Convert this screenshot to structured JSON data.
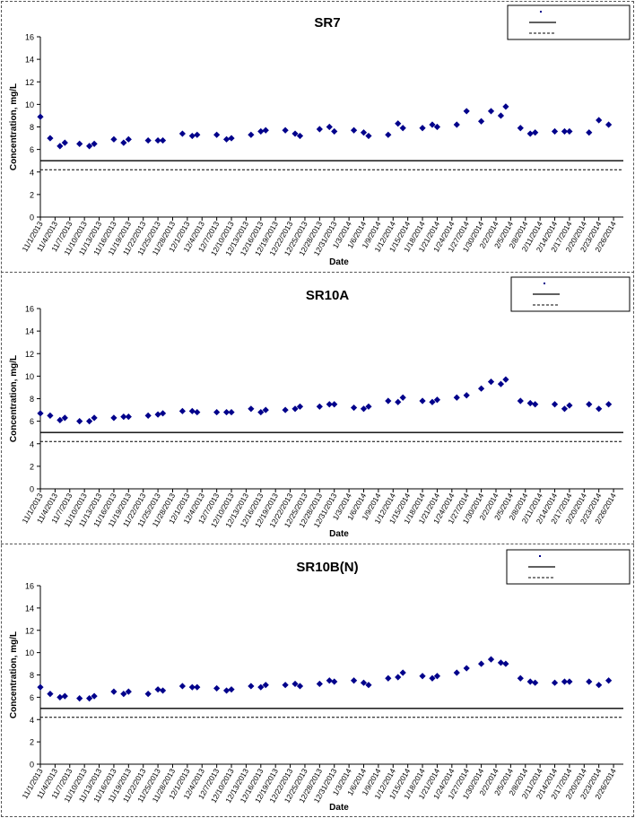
{
  "chart_data": [
    {
      "type": "scatter",
      "title": "SR7",
      "xlabel": "Date",
      "ylabel": "Concentration, mg/L",
      "ylim": [
        0,
        16
      ],
      "yticks": [
        0,
        2,
        4,
        6,
        8,
        10,
        12,
        14,
        16
      ],
      "xtick_labels": [
        "11/1/2013",
        "11/4/2013",
        "11/7/2013",
        "11/10/2013",
        "11/13/2013",
        "11/16/2013",
        "11/19/2013",
        "11/22/2013",
        "11/25/2013",
        "11/28/2013",
        "12/1/2013",
        "12/4/2013",
        "12/7/2013",
        "12/10/2013",
        "12/13/2013",
        "12/16/2013",
        "12/19/2013",
        "12/22/2013",
        "12/25/2013",
        "12/28/2013",
        "12/31/2013",
        "1/3/2014",
        "1/6/2014",
        "1/9/2014",
        "1/12/2014",
        "1/15/2014",
        "1/18/2014",
        "1/21/2014",
        "1/24/2014",
        "1/27/2014",
        "1/30/2014",
        "2/2/2014",
        "2/5/2014",
        "2/8/2014",
        "2/11/2014",
        "2/14/2014",
        "2/17/2014",
        "2/20/2014",
        "2/23/2014",
        "2/26/2014"
      ],
      "x_range": [
        "11/1/2013",
        "2/28/2014"
      ],
      "grid": false,
      "legend_position": "top-right",
      "legend": [
        "",
        "",
        ""
      ],
      "reference_lines": [
        {
          "y": 5.0,
          "style": "solid"
        },
        {
          "y": 4.2,
          "style": "dashed"
        }
      ],
      "series": [
        {
          "marker_color": "#00008b",
          "points": [
            [
              "11/1/2013",
              8.9
            ],
            [
              "11/3/2013",
              7.0
            ],
            [
              "11/5/2013",
              6.3
            ],
            [
              "11/6/2013",
              6.6
            ],
            [
              "11/9/2013",
              6.5
            ],
            [
              "11/11/2013",
              6.3
            ],
            [
              "11/12/2013",
              6.5
            ],
            [
              "11/16/2013",
              6.9
            ],
            [
              "11/18/2013",
              6.6
            ],
            [
              "11/19/2013",
              6.9
            ],
            [
              "11/23/2013",
              6.8
            ],
            [
              "11/25/2013",
              6.8
            ],
            [
              "11/26/2013",
              6.8
            ],
            [
              "11/30/2013",
              7.4
            ],
            [
              "12/2/2013",
              7.2
            ],
            [
              "12/3/2013",
              7.3
            ],
            [
              "12/7/2013",
              7.3
            ],
            [
              "12/9/2013",
              6.9
            ],
            [
              "12/10/2013",
              7.0
            ],
            [
              "12/14/2013",
              7.3
            ],
            [
              "12/16/2013",
              7.6
            ],
            [
              "12/17/2013",
              7.7
            ],
            [
              "12/21/2013",
              7.7
            ],
            [
              "12/23/2013",
              7.4
            ],
            [
              "12/24/2013",
              7.2
            ],
            [
              "12/28/2013",
              7.8
            ],
            [
              "12/30/2013",
              8.0
            ],
            [
              "12/31/2013",
              7.6
            ],
            [
              "1/4/2014",
              7.7
            ],
            [
              "1/6/2014",
              7.5
            ],
            [
              "1/7/2014",
              7.2
            ],
            [
              "1/11/2014",
              7.3
            ],
            [
              "1/13/2014",
              8.3
            ],
            [
              "1/14/2014",
              7.9
            ],
            [
              "1/18/2014",
              7.9
            ],
            [
              "1/20/2014",
              8.2
            ],
            [
              "1/21/2014",
              8.0
            ],
            [
              "1/25/2014",
              8.2
            ],
            [
              "1/27/2014",
              9.4
            ],
            [
              "1/30/2014",
              8.5
            ],
            [
              "2/1/2014",
              9.4
            ],
            [
              "2/3/2014",
              9.0
            ],
            [
              "2/4/2014",
              9.8
            ],
            [
              "2/7/2014",
              7.9
            ],
            [
              "2/9/2014",
              7.4
            ],
            [
              "2/10/2014",
              7.5
            ],
            [
              "2/14/2014",
              7.6
            ],
            [
              "2/16/2014",
              7.6
            ],
            [
              "2/17/2014",
              7.6
            ],
            [
              "2/21/2014",
              7.5
            ],
            [
              "2/23/2014",
              8.6
            ],
            [
              "2/25/2014",
              8.2
            ]
          ]
        }
      ]
    },
    {
      "type": "scatter",
      "title": "SR10A",
      "xlabel": "Date",
      "ylabel": "Concentration, mg/L",
      "ylim": [
        0,
        16
      ],
      "yticks": [
        0,
        2,
        4,
        6,
        8,
        10,
        12,
        14,
        16
      ],
      "xtick_labels": [
        "11/1/2013",
        "11/4/2013",
        "11/7/2013",
        "11/10/2013",
        "11/13/2013",
        "11/16/2013",
        "11/19/2013",
        "11/22/2013",
        "11/25/2013",
        "11/28/2013",
        "12/1/2013",
        "12/4/2013",
        "12/7/2013",
        "12/10/2013",
        "12/13/2013",
        "12/16/2013",
        "12/19/2013",
        "12/22/2013",
        "12/25/2013",
        "12/28/2013",
        "12/31/2013",
        "1/3/2014",
        "1/6/2014",
        "1/9/2014",
        "1/12/2014",
        "1/15/2014",
        "1/18/2014",
        "1/21/2014",
        "1/24/2014",
        "1/27/2014",
        "1/30/2014",
        "2/2/2014",
        "2/5/2014",
        "2/8/2014",
        "2/11/2014",
        "2/14/2014",
        "2/17/2014",
        "2/20/2014",
        "2/23/2014",
        "2/26/2014"
      ],
      "x_range": [
        "11/1/2013",
        "2/28/2014"
      ],
      "grid": false,
      "legend_position": "top-right",
      "legend": [
        "",
        "",
        ""
      ],
      "reference_lines": [
        {
          "y": 5.0,
          "style": "solid"
        },
        {
          "y": 4.2,
          "style": "dashed"
        }
      ],
      "series": [
        {
          "marker_color": "#00008b",
          "points": [
            [
              "11/1/2013",
              6.7
            ],
            [
              "11/3/2013",
              6.5
            ],
            [
              "11/5/2013",
              6.1
            ],
            [
              "11/6/2013",
              6.3
            ],
            [
              "11/9/2013",
              6.0
            ],
            [
              "11/11/2013",
              6.0
            ],
            [
              "11/12/2013",
              6.3
            ],
            [
              "11/16/2013",
              6.3
            ],
            [
              "11/18/2013",
              6.4
            ],
            [
              "11/19/2013",
              6.4
            ],
            [
              "11/23/2013",
              6.5
            ],
            [
              "11/25/2013",
              6.6
            ],
            [
              "11/26/2013",
              6.7
            ],
            [
              "11/30/2013",
              6.9
            ],
            [
              "12/2/2013",
              6.9
            ],
            [
              "12/3/2013",
              6.8
            ],
            [
              "12/7/2013",
              6.8
            ],
            [
              "12/9/2013",
              6.8
            ],
            [
              "12/10/2013",
              6.8
            ],
            [
              "12/14/2013",
              7.1
            ],
            [
              "12/16/2013",
              6.8
            ],
            [
              "12/17/2013",
              7.0
            ],
            [
              "12/21/2013",
              7.0
            ],
            [
              "12/23/2013",
              7.1
            ],
            [
              "12/24/2013",
              7.3
            ],
            [
              "12/28/2013",
              7.3
            ],
            [
              "12/30/2013",
              7.5
            ],
            [
              "12/31/2013",
              7.5
            ],
            [
              "1/4/2014",
              7.2
            ],
            [
              "1/6/2014",
              7.1
            ],
            [
              "1/7/2014",
              7.3
            ],
            [
              "1/11/2014",
              7.8
            ],
            [
              "1/13/2014",
              7.7
            ],
            [
              "1/14/2014",
              8.1
            ],
            [
              "1/18/2014",
              7.8
            ],
            [
              "1/20/2014",
              7.7
            ],
            [
              "1/21/2014",
              7.9
            ],
            [
              "1/25/2014",
              8.1
            ],
            [
              "1/27/2014",
              8.3
            ],
            [
              "1/30/2014",
              8.9
            ],
            [
              "2/1/2014",
              9.5
            ],
            [
              "2/3/2014",
              9.3
            ],
            [
              "2/4/2014",
              9.7
            ],
            [
              "2/7/2014",
              7.8
            ],
            [
              "2/9/2014",
              7.6
            ],
            [
              "2/10/2014",
              7.5
            ],
            [
              "2/14/2014",
              7.5
            ],
            [
              "2/16/2014",
              7.1
            ],
            [
              "2/17/2014",
              7.4
            ],
            [
              "2/21/2014",
              7.5
            ],
            [
              "2/23/2014",
              7.1
            ],
            [
              "2/25/2014",
              7.5
            ]
          ]
        }
      ]
    },
    {
      "type": "scatter",
      "title": "SR10B(N)",
      "xlabel": "Date",
      "ylabel": "Concentration, mg/L",
      "ylim": [
        0,
        16
      ],
      "yticks": [
        0,
        2,
        4,
        6,
        8,
        10,
        12,
        14,
        16
      ],
      "xtick_labels": [
        "11/1/2013",
        "11/4/2013",
        "11/7/2013",
        "11/10/2013",
        "11/13/2013",
        "11/16/2013",
        "11/19/2013",
        "11/22/2013",
        "11/25/2013",
        "11/28/2013",
        "12/1/2013",
        "12/4/2013",
        "12/7/2013",
        "12/10/2013",
        "12/13/2013",
        "12/16/2013",
        "12/19/2013",
        "12/22/2013",
        "12/25/2013",
        "12/28/2013",
        "12/31/2013",
        "1/3/2014",
        "1/6/2014",
        "1/9/2014",
        "1/12/2014",
        "1/15/2014",
        "1/18/2014",
        "1/21/2014",
        "1/24/2014",
        "1/27/2014",
        "1/30/2014",
        "2/2/2014",
        "2/5/2014",
        "2/8/2014",
        "2/11/2014",
        "2/14/2014",
        "2/17/2014",
        "2/20/2014",
        "2/23/2014",
        "2/26/2014"
      ],
      "x_range": [
        "11/1/2013",
        "2/28/2014"
      ],
      "grid": false,
      "legend_position": "top-right",
      "legend": [
        "",
        "",
        ""
      ],
      "reference_lines": [
        {
          "y": 5.0,
          "style": "solid"
        },
        {
          "y": 4.2,
          "style": "dashed"
        }
      ],
      "series": [
        {
          "marker_color": "#00008b",
          "points": [
            [
              "11/1/2013",
              6.9
            ],
            [
              "11/3/2013",
              6.3
            ],
            [
              "11/5/2013",
              6.0
            ],
            [
              "11/6/2013",
              6.1
            ],
            [
              "11/9/2013",
              5.9
            ],
            [
              "11/11/2013",
              5.9
            ],
            [
              "11/12/2013",
              6.1
            ],
            [
              "11/16/2013",
              6.5
            ],
            [
              "11/18/2013",
              6.3
            ],
            [
              "11/19/2013",
              6.5
            ],
            [
              "11/23/2013",
              6.3
            ],
            [
              "11/25/2013",
              6.7
            ],
            [
              "11/26/2013",
              6.6
            ],
            [
              "11/30/2013",
              7.0
            ],
            [
              "12/2/2013",
              6.9
            ],
            [
              "12/3/2013",
              6.9
            ],
            [
              "12/7/2013",
              6.8
            ],
            [
              "12/9/2013",
              6.6
            ],
            [
              "12/10/2013",
              6.7
            ],
            [
              "12/14/2013",
              7.0
            ],
            [
              "12/16/2013",
              6.9
            ],
            [
              "12/17/2013",
              7.1
            ],
            [
              "12/21/2013",
              7.1
            ],
            [
              "12/23/2013",
              7.2
            ],
            [
              "12/24/2013",
              7.0
            ],
            [
              "12/28/2013",
              7.2
            ],
            [
              "12/30/2013",
              7.5
            ],
            [
              "12/31/2013",
              7.4
            ],
            [
              "1/4/2014",
              7.5
            ],
            [
              "1/6/2014",
              7.3
            ],
            [
              "1/7/2014",
              7.1
            ],
            [
              "1/11/2014",
              7.7
            ],
            [
              "1/13/2014",
              7.8
            ],
            [
              "1/14/2014",
              8.2
            ],
            [
              "1/18/2014",
              7.9
            ],
            [
              "1/20/2014",
              7.7
            ],
            [
              "1/21/2014",
              7.9
            ],
            [
              "1/25/2014",
              8.2
            ],
            [
              "1/27/2014",
              8.6
            ],
            [
              "1/30/2014",
              9.0
            ],
            [
              "2/1/2014",
              9.4
            ],
            [
              "2/3/2014",
              9.1
            ],
            [
              "2/4/2014",
              9.0
            ],
            [
              "2/7/2014",
              7.7
            ],
            [
              "2/9/2014",
              7.4
            ],
            [
              "2/10/2014",
              7.3
            ],
            [
              "2/14/2014",
              7.3
            ],
            [
              "2/16/2014",
              7.4
            ],
            [
              "2/17/2014",
              7.4
            ],
            [
              "2/21/2014",
              7.4
            ],
            [
              "2/23/2014",
              7.1
            ],
            [
              "2/25/2014",
              7.5
            ]
          ]
        }
      ]
    }
  ]
}
